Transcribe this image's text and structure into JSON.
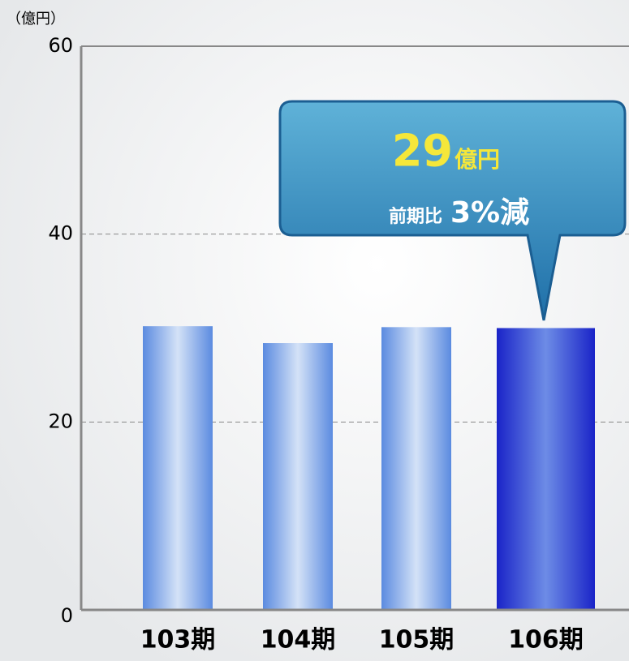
{
  "chart_data": {
    "type": "bar",
    "unit_label": "（億円）",
    "categories": [
      "103期",
      "104期",
      "105期",
      "106期"
    ],
    "values": [
      30.2,
      28.4,
      30.1,
      30.0
    ],
    "colors": [
      "#5b8be0",
      "#5b8be0",
      "#5b8be0",
      "#1a24c8"
    ],
    "ylim": [
      0,
      60
    ],
    "yticks": [
      0,
      20,
      40,
      60
    ],
    "grid": true,
    "annotation": {
      "value": "29",
      "unit": "億円",
      "prefix": "前期比",
      "change": "3%減"
    }
  }
}
